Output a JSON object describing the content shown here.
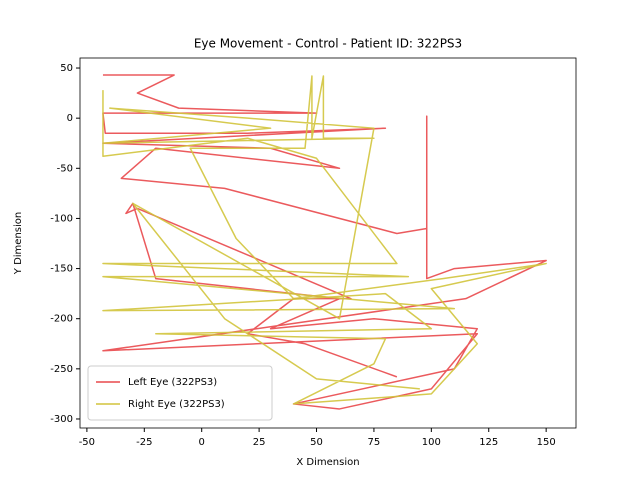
{
  "chart_data": {
    "type": "line",
    "title": "Eye Movement - Control - Patient ID: 322PS3",
    "x_label": "X Dimension",
    "y_label": "Y Dimension",
    "xlim": [
      -53,
      163
    ],
    "ylim": [
      -309,
      60
    ],
    "xticks": [
      -50,
      -25,
      0,
      25,
      50,
      75,
      100,
      125,
      150
    ],
    "yticks": [
      50,
      0,
      -50,
      -100,
      -150,
      -200,
      -250,
      -300
    ],
    "grid": false,
    "legend": "lower left",
    "series": [
      {
        "name": "Left Eye (322PS3)",
        "color": "#e9484b",
        "x": [
          -43,
          -12,
          -28,
          -10,
          50,
          -43,
          -42,
          20,
          80,
          -43,
          30,
          60,
          -20,
          -35,
          10,
          85,
          98,
          98,
          98,
          110,
          150,
          115,
          -43,
          120,
          100,
          60,
          40,
          110,
          120,
          75,
          30,
          60,
          -20,
          -30,
          -33,
          -28,
          65,
          40,
          20,
          45,
          85
        ],
        "values": [
          43,
          43,
          25,
          10,
          5,
          5,
          -15,
          -15,
          -10,
          -25,
          -30,
          -50,
          -30,
          -60,
          -70,
          -115,
          -110,
          2,
          -160,
          -150,
          -142,
          -180,
          -232,
          -215,
          -270,
          -290,
          -285,
          -250,
          -210,
          -200,
          -210,
          -180,
          -160,
          -85,
          -95,
          -90,
          -180,
          -180,
          -215,
          -225,
          -258
        ]
      },
      {
        "name": "Right Eye (322PS3)",
        "color": "#d2c43c",
        "x": [
          -43,
          -43,
          20,
          50,
          85,
          -43,
          90,
          -43,
          110,
          -43,
          80,
          100,
          -20,
          80,
          75,
          40,
          100,
          120,
          100,
          150,
          105,
          40,
          15,
          -5,
          45,
          48,
          48,
          53,
          53,
          75,
          -43,
          30,
          -40,
          20,
          75,
          60,
          -30,
          10,
          50,
          95
        ],
        "values": [
          28,
          -38,
          -20,
          -40,
          -145,
          -145,
          -158,
          -158,
          -190,
          -192,
          -175,
          -210,
          -215,
          -220,
          -245,
          -285,
          -275,
          -225,
          -170,
          -145,
          -160,
          -180,
          -120,
          -30,
          -30,
          42,
          -20,
          42,
          -20,
          -20,
          -25,
          -10,
          10,
          0,
          -10,
          -200,
          -85,
          -200,
          -260,
          -270
        ]
      }
    ]
  }
}
